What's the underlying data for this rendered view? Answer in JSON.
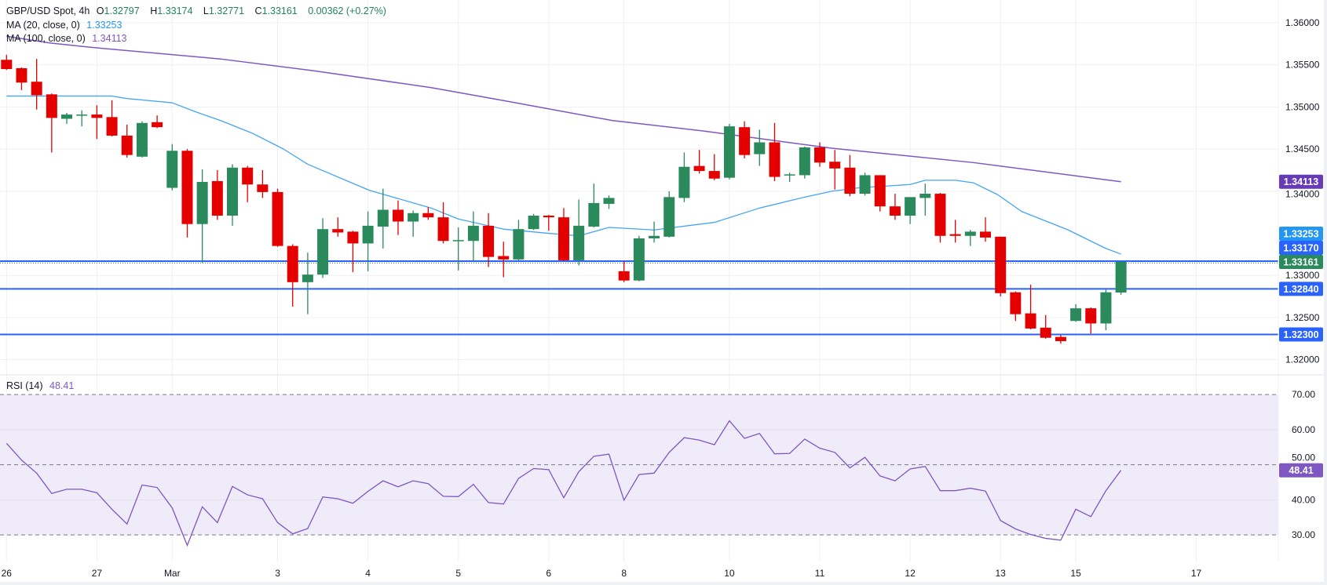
{
  "legend": {
    "symbol": "GBP/USD Spot, 4h",
    "o_label": "O",
    "open": "1.32797",
    "h_label": "H",
    "high": "1.33174",
    "l_label": "L",
    "low": "1.32771",
    "c_label": "C",
    "close": "1.33161",
    "change": "0.00362 (+0.27%)",
    "ma20_label": "MA (20, close, 0)",
    "ma20_value": "1.33253",
    "ma100_label": "MA (100, close, 0)",
    "ma100_value": "1.34113",
    "rsi_label": "RSI (14)",
    "rsi_value": "48.41"
  },
  "colors": {
    "up": "#2a8a5c",
    "down": "#e50000",
    "ma20": "#42a5f5",
    "ma100": "#7e57c2",
    "hline": "#2962ff",
    "rsi": "#7e57c2",
    "rsi_band": "#efebf8",
    "last_price": "#2a8a5c",
    "ma20_tag": "#2196f3",
    "ma100_tag": "#673ab7"
  },
  "chart_data": [
    {
      "type": "candlestick",
      "title": "GBP/USD Spot, 4h",
      "ylim": [
        1.3182,
        1.3627
      ],
      "grid": true,
      "y_ticks": [
        "1.36000",
        "1.35500",
        "1.35000",
        "1.34500",
        "1.34000",
        "1.33000",
        "1.32500",
        "1.32000"
      ],
      "x_ticks": [
        {
          "label": "26",
          "bar": 0
        },
        {
          "label": "27",
          "bar": 6
        },
        {
          "label": "Mar",
          "bar": 11
        },
        {
          "label": "3",
          "bar": 18
        },
        {
          "label": "4",
          "bar": 24
        },
        {
          "label": "5",
          "bar": 30
        },
        {
          "label": "6",
          "bar": 36
        },
        {
          "label": "8",
          "bar": 41
        },
        {
          "label": "10",
          "bar": 48
        },
        {
          "label": "11",
          "bar": 54
        },
        {
          "label": "12",
          "bar": 60
        },
        {
          "label": "13",
          "bar": 66
        },
        {
          "label": "15",
          "bar": 71
        },
        {
          "label": "17",
          "bar": 79
        }
      ],
      "candles_ohlc": [
        [
          1.3556,
          1.3562,
          1.3544,
          1.3545
        ],
        [
          1.3546,
          1.3547,
          1.352,
          1.3529
        ],
        [
          1.353,
          1.3557,
          1.3497,
          1.3514
        ],
        [
          1.3515,
          1.3516,
          1.3446,
          1.3487
        ],
        [
          1.3486,
          1.3493,
          1.348,
          1.3491
        ],
        [
          1.349,
          1.3496,
          1.3477,
          1.3491
        ],
        [
          1.3491,
          1.3502,
          1.3462,
          1.3487
        ],
        [
          1.3488,
          1.3508,
          1.3465,
          1.3466
        ],
        [
          1.3466,
          1.3479,
          1.344,
          1.3443
        ],
        [
          1.3441,
          1.3483,
          1.344,
          1.3481
        ],
        [
          1.3482,
          1.349,
          1.3475,
          1.3476
        ],
        [
          1.3404,
          1.3456,
          1.3401,
          1.3448
        ],
        [
          1.3448,
          1.345,
          1.3345,
          1.3361
        ],
        [
          1.3361,
          1.3426,
          1.3315,
          1.3411
        ],
        [
          1.3412,
          1.3425,
          1.3366,
          1.3371
        ],
        [
          1.3371,
          1.3432,
          1.3359,
          1.3428
        ],
        [
          1.3428,
          1.343,
          1.3387,
          1.3408
        ],
        [
          1.3408,
          1.3425,
          1.3392,
          1.3399
        ],
        [
          1.3399,
          1.3403,
          1.3334,
          1.3335
        ],
        [
          1.3335,
          1.3337,
          1.3263,
          1.3292
        ],
        [
          1.3292,
          1.3327,
          1.3254,
          1.3301
        ],
        [
          1.3301,
          1.3368,
          1.3297,
          1.3355
        ],
        [
          1.3355,
          1.3369,
          1.3346,
          1.3351
        ],
        [
          1.3352,
          1.3353,
          1.3304,
          1.3338
        ],
        [
          1.3338,
          1.3376,
          1.3305,
          1.3359
        ],
        [
          1.3358,
          1.3403,
          1.3332,
          1.3378
        ],
        [
          1.3378,
          1.3389,
          1.3348,
          1.3364
        ],
        [
          1.3364,
          1.3377,
          1.3346,
          1.3374
        ],
        [
          1.3374,
          1.3381,
          1.3366,
          1.3369
        ],
        [
          1.3369,
          1.3387,
          1.3338,
          1.3341
        ],
        [
          1.3341,
          1.3357,
          1.3306,
          1.3342
        ],
        [
          1.3341,
          1.3376,
          1.3316,
          1.3359
        ],
        [
          1.3359,
          1.3374,
          1.331,
          1.3322
        ],
        [
          1.3323,
          1.334,
          1.3298,
          1.3319
        ],
        [
          1.3319,
          1.3366,
          1.3318,
          1.3355
        ],
        [
          1.3355,
          1.3373,
          1.3354,
          1.3371
        ],
        [
          1.3371,
          1.3372,
          1.3353,
          1.3369
        ],
        [
          1.3369,
          1.338,
          1.3317,
          1.3318
        ],
        [
          1.3318,
          1.339,
          1.3312,
          1.3359
        ],
        [
          1.3358,
          1.3409,
          1.3357,
          1.3386
        ],
        [
          1.3385,
          1.3395,
          1.3379,
          1.3392
        ],
        [
          1.3305,
          1.3317,
          1.3292,
          1.3294
        ],
        [
          1.3294,
          1.3347,
          1.3293,
          1.3344
        ],
        [
          1.3344,
          1.3364,
          1.3339,
          1.3347
        ],
        [
          1.3346,
          1.34,
          1.3345,
          1.3393
        ],
        [
          1.3392,
          1.3446,
          1.3387,
          1.3429
        ],
        [
          1.343,
          1.3449,
          1.3421,
          1.3424
        ],
        [
          1.3424,
          1.3444,
          1.3413,
          1.3415
        ],
        [
          1.3416,
          1.348,
          1.3414,
          1.3477
        ],
        [
          1.3476,
          1.3483,
          1.3439,
          1.3443
        ],
        [
          1.3444,
          1.3473,
          1.343,
          1.3458
        ],
        [
          1.3458,
          1.3481,
          1.3412,
          1.3417
        ],
        [
          1.3419,
          1.3422,
          1.3411,
          1.342
        ],
        [
          1.3419,
          1.3453,
          1.3415,
          1.3452
        ],
        [
          1.3452,
          1.3458,
          1.3429,
          1.3434
        ],
        [
          1.3435,
          1.3449,
          1.3402,
          1.3427
        ],
        [
          1.3428,
          1.3443,
          1.3394,
          1.3397
        ],
        [
          1.3397,
          1.3422,
          1.3395,
          1.3419
        ],
        [
          1.3419,
          1.3419,
          1.3376,
          1.3382
        ],
        [
          1.3382,
          1.3397,
          1.3366,
          1.3371
        ],
        [
          1.3371,
          1.3393,
          1.3361,
          1.3393
        ],
        [
          1.3392,
          1.3409,
          1.3371,
          1.3397
        ],
        [
          1.3397,
          1.3398,
          1.3339,
          1.3347
        ],
        [
          1.3349,
          1.3366,
          1.3339,
          1.3347
        ],
        [
          1.3347,
          1.3354,
          1.3335,
          1.3352
        ],
        [
          1.3352,
          1.3369,
          1.334,
          1.3345
        ],
        [
          1.3346,
          1.3346,
          1.3275,
          1.3279
        ],
        [
          1.328,
          1.3281,
          1.3246,
          1.3254
        ],
        [
          1.3255,
          1.3289,
          1.3236,
          1.3237
        ],
        [
          1.3238,
          1.3253,
          1.3225,
          1.3226
        ],
        [
          1.3227,
          1.3229,
          1.3219,
          1.3222
        ],
        [
          1.3246,
          1.3266,
          1.3245,
          1.3261
        ],
        [
          1.3261,
          1.3262,
          1.3231,
          1.3243
        ],
        [
          1.3243,
          1.3283,
          1.3235,
          1.328
        ],
        [
          1.32797,
          1.33174,
          1.32771,
          1.33161
        ]
      ],
      "ma20": [
        [
          0,
          1.3513
        ],
        [
          7,
          1.3513
        ],
        [
          8,
          1.351
        ],
        [
          11,
          1.3505
        ],
        [
          12.6,
          1.3494
        ],
        [
          14.2,
          1.3484
        ],
        [
          16.3,
          1.3469
        ],
        [
          18.4,
          1.345
        ],
        [
          20,
          1.3432
        ],
        [
          24.1,
          1.3401
        ],
        [
          28.2,
          1.338
        ],
        [
          30,
          1.3367
        ],
        [
          33,
          1.3355
        ],
        [
          36,
          1.335
        ],
        [
          38,
          1.3347
        ],
        [
          40,
          1.3357
        ],
        [
          43,
          1.3354
        ],
        [
          47,
          1.3363
        ],
        [
          50,
          1.338
        ],
        [
          53,
          1.3393
        ],
        [
          54.8,
          1.34
        ],
        [
          56.6,
          1.3404
        ],
        [
          60,
          1.3408
        ],
        [
          61,
          1.3413
        ],
        [
          63,
          1.3413
        ],
        [
          64.2,
          1.341
        ],
        [
          65.8,
          1.3396
        ],
        [
          67.4,
          1.3376
        ],
        [
          70.5,
          1.3354
        ],
        [
          73,
          1.3332
        ],
        [
          74,
          1.33253
        ]
      ],
      "ma100": [
        [
          0,
          1.3584
        ],
        [
          2.85,
          1.3576
        ],
        [
          5.5,
          1.3571
        ],
        [
          14.2,
          1.3557
        ],
        [
          20.4,
          1.3543
        ],
        [
          28.2,
          1.3523
        ],
        [
          33.5,
          1.3506
        ],
        [
          40.2,
          1.3484
        ],
        [
          46.5,
          1.3471
        ],
        [
          54.8,
          1.3451
        ],
        [
          64.2,
          1.3434
        ],
        [
          74,
          1.34113
        ]
      ],
      "horizontal_lines": [
        {
          "value": 1.3317,
          "label": "1.33170",
          "dotted": true
        },
        {
          "value": 1.3284,
          "label": "1.32840"
        },
        {
          "value": 1.323,
          "label": "1.32300"
        }
      ],
      "price_tags": [
        {
          "value": 1.34113,
          "label": "1.34113",
          "color": "#673ab7"
        },
        {
          "value": 1.33253,
          "label": "1.33253",
          "color": "#2196f3"
        },
        {
          "value": 1.3317,
          "label": "1.33170",
          "color": "#2962ff"
        },
        {
          "value": 1.33161,
          "label": "1.33161",
          "color": "#2a8a5c"
        },
        {
          "value": 1.3284,
          "label": "1.32840",
          "color": "#2962ff"
        },
        {
          "value": 1.323,
          "label": "1.32300",
          "color": "#2962ff"
        }
      ]
    },
    {
      "type": "line",
      "title": "RSI (14)",
      "ylim": [
        22.2,
        75.6
      ],
      "y_ticks": [
        "70.00",
        "60.00",
        "50.00",
        "40.00",
        "30.00"
      ],
      "bands": [
        30,
        50,
        70
      ],
      "rsi": [
        56.1,
        51.3,
        47.6,
        41.8,
        43.0,
        43.0,
        42.0,
        37.3,
        33.1,
        44.2,
        43.5,
        37.7,
        27.0,
        38.0,
        33.5,
        43.8,
        41.4,
        40.3,
        33.5,
        30.3,
        31.8,
        40.8,
        40.3,
        39.0,
        42.4,
        45.4,
        43.7,
        45.4,
        44.6,
        41.0,
        40.9,
        44.4,
        39.2,
        38.8,
        46.1,
        48.9,
        48.6,
        40.6,
        48.0,
        52.4,
        53.0,
        39.9,
        47.2,
        47.6,
        53.5,
        57.7,
        57.0,
        55.7,
        62.5,
        57.5,
        58.9,
        53.1,
        53.2,
        57.3,
        54.7,
        53.5,
        49.1,
        52.1,
        46.8,
        45.4,
        48.8,
        49.5,
        42.6,
        42.6,
        43.3,
        42.5,
        34.1,
        31.7,
        30.1,
        29.0,
        28.5,
        37.3,
        35.2,
        42.6,
        48.41
      ],
      "last_tag": "48.41"
    }
  ]
}
